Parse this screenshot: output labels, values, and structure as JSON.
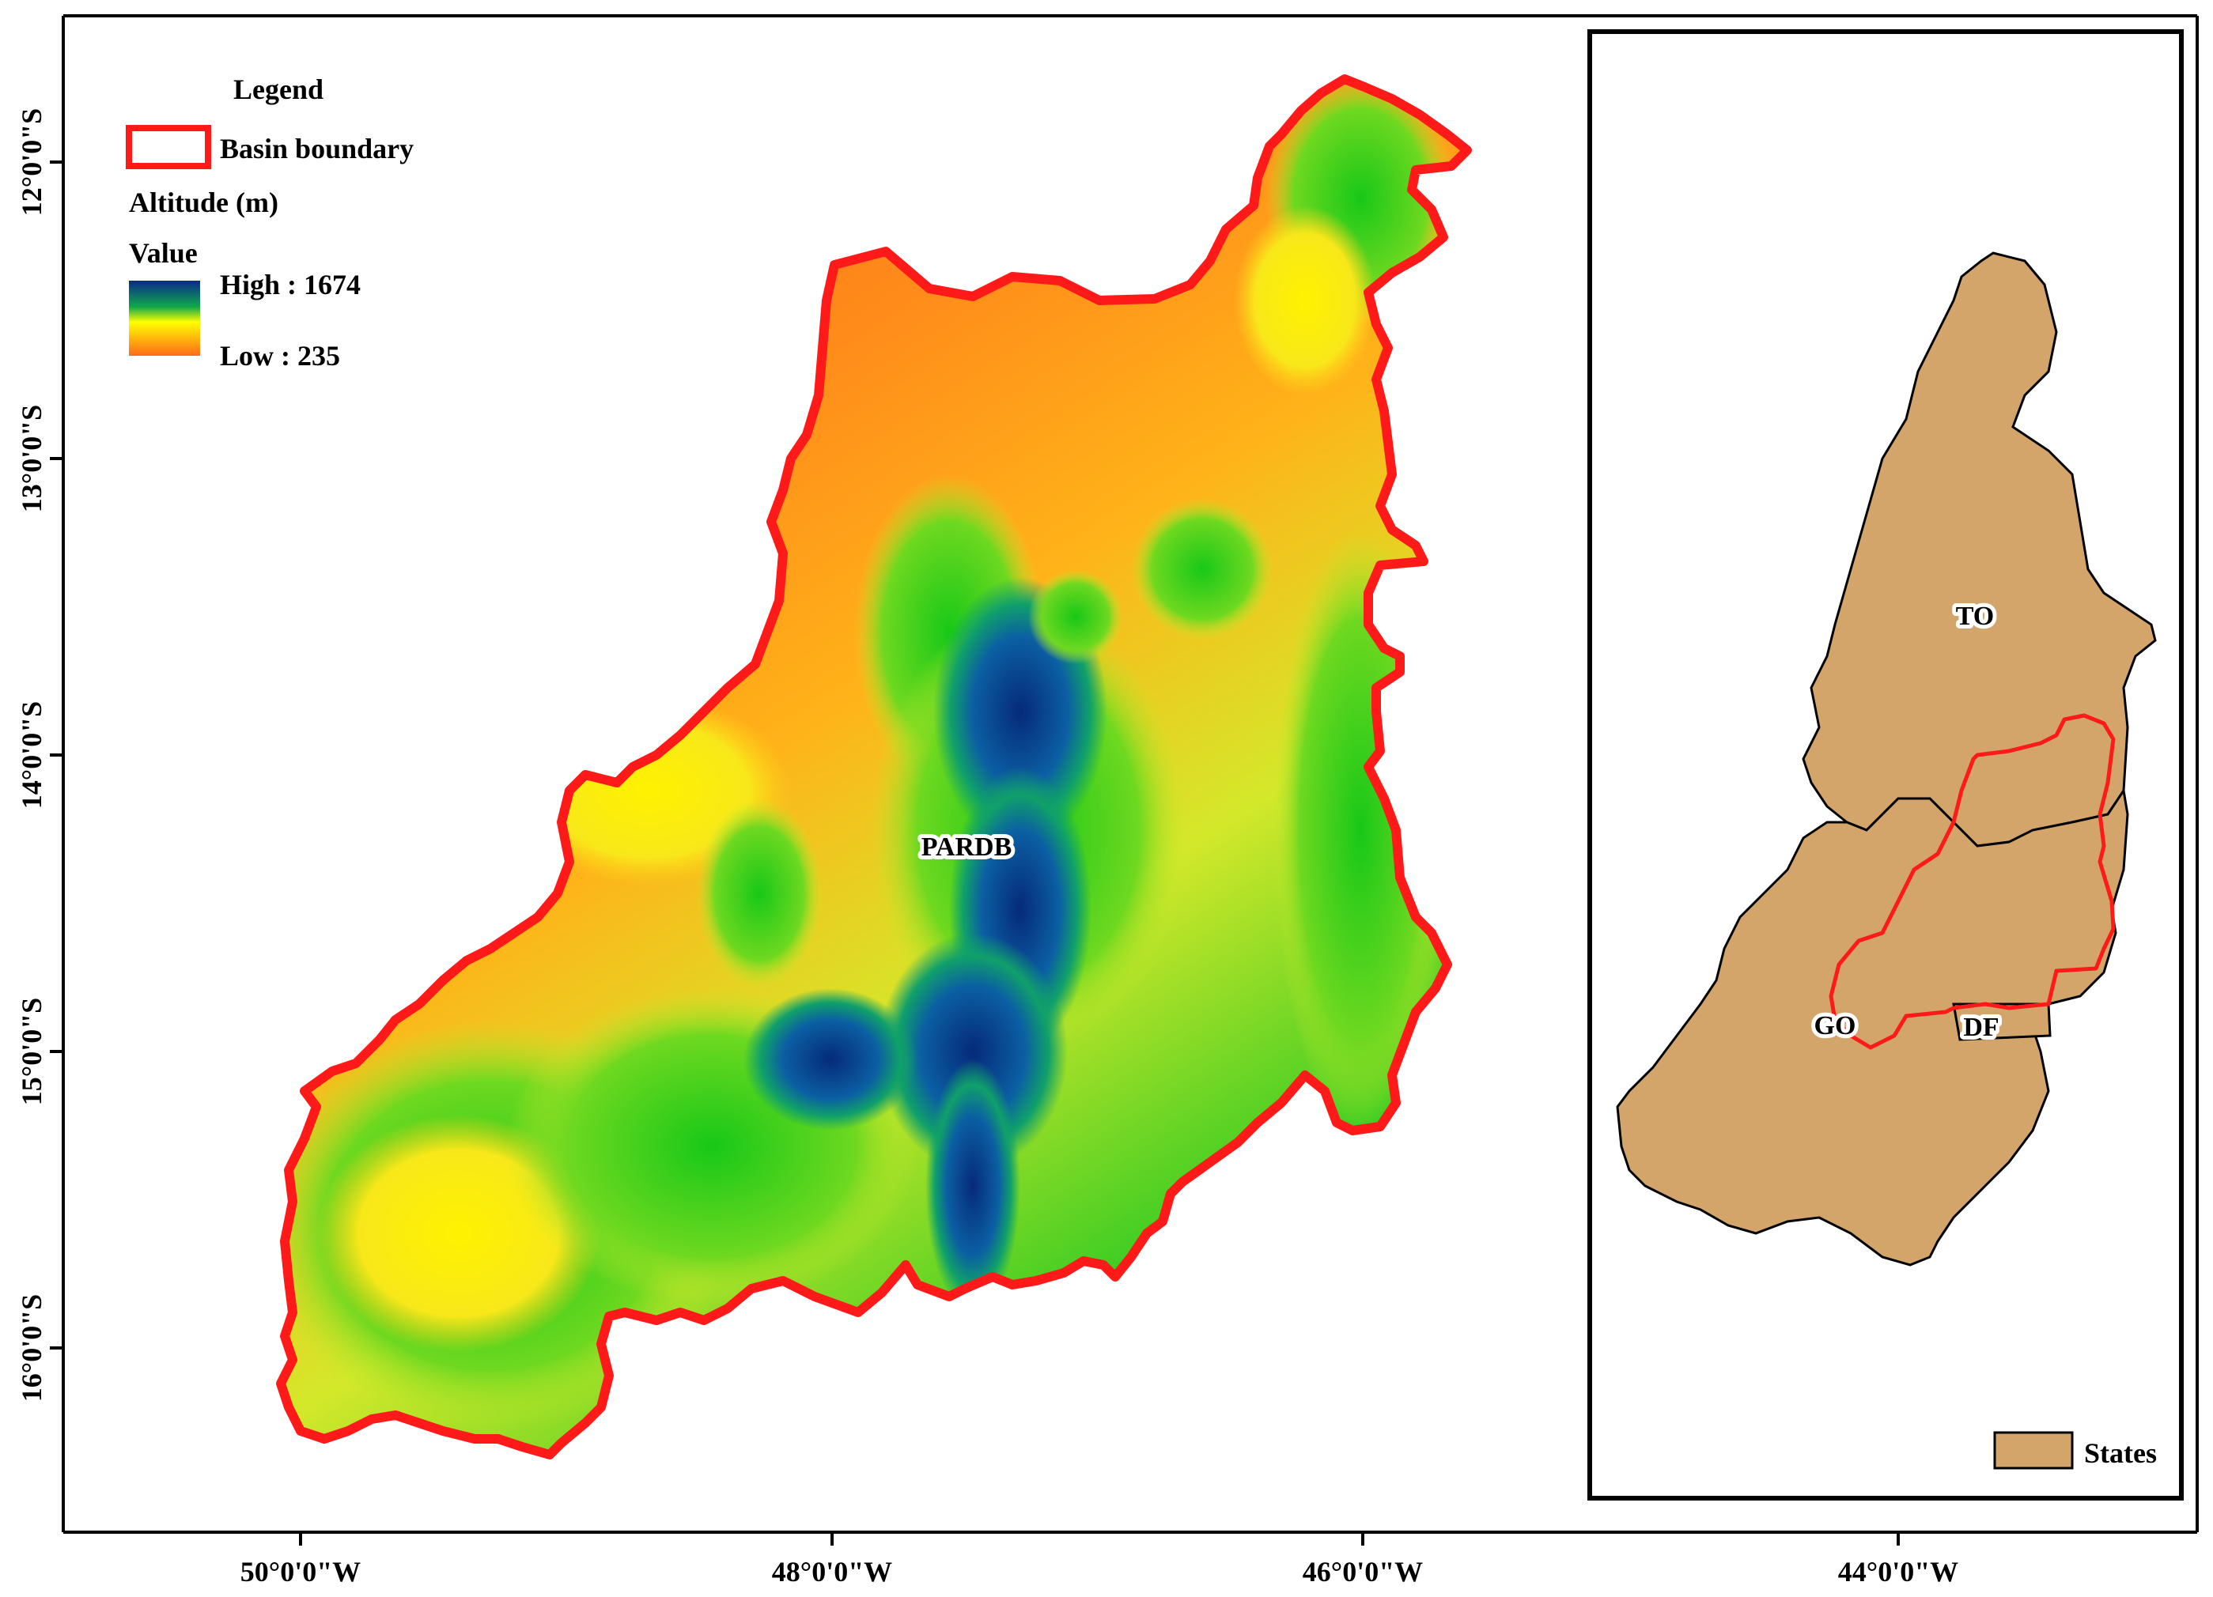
{
  "legend": {
    "title": "Legend",
    "basin_boundary": "Basin boundary",
    "altitude_title": "Altitude (m)",
    "value_label": "Value",
    "high": "High : 1674",
    "low": "Low : 235"
  },
  "axes": {
    "x_ticks": [
      "50°0'0\"W",
      "48°0'0\"W",
      "46°0'0\"W",
      "44°0'0\"W"
    ],
    "y_ticks": [
      "12°0'0\"S",
      "13°0'0\"S",
      "14°0'0\"S",
      "15°0'0\"S",
      "16°0'0\"S"
    ]
  },
  "basin_label": "PARDB",
  "inset": {
    "state_labels": [
      "TO",
      "GO",
      "DF"
    ],
    "legend_states": "States"
  },
  "colors": {
    "boundary": "#ff1a1a",
    "states_fill": "#d4a56a",
    "ramp_high": "#0a2a8c",
    "ramp_mid_green": "#18c818",
    "ramp_mid_yellow": "#ffff00",
    "ramp_low": "#ff6a1a"
  }
}
